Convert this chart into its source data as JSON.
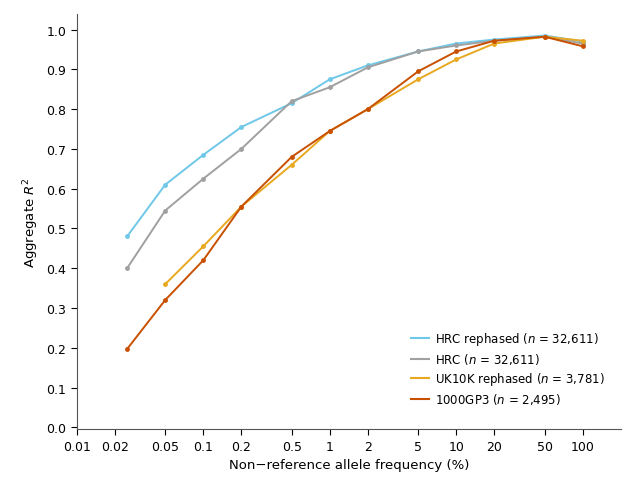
{
  "series": [
    {
      "label_text": "HRC rephased ($\\it{n}$ = 32,611)",
      "color": "#6FC8E8",
      "x": [
        0.025,
        0.05,
        0.1,
        0.2,
        0.5,
        1,
        2,
        5,
        10,
        20,
        50,
        100
      ],
      "y": [
        0.48,
        0.61,
        0.685,
        0.755,
        0.815,
        0.875,
        0.91,
        0.945,
        0.965,
        0.975,
        0.985,
        0.97
      ]
    },
    {
      "label_text": "HRC ($\\it{n}$ = 32,611)",
      "color": "#A0A0A0",
      "x": [
        0.025,
        0.05,
        0.1,
        0.2,
        0.5,
        1,
        2,
        5,
        10,
        20,
        50,
        100
      ],
      "y": [
        0.4,
        0.545,
        0.625,
        0.7,
        0.82,
        0.855,
        0.905,
        0.945,
        0.96,
        0.972,
        0.982,
        0.965
      ]
    },
    {
      "label_text": "UK10K rephased ($\\it{n}$ = 3,781)",
      "color": "#E8A820",
      "x": [
        0.05,
        0.1,
        0.2,
        0.5,
        1,
        2,
        5,
        10,
        20,
        50,
        100
      ],
      "y": [
        0.36,
        0.455,
        0.555,
        0.66,
        0.745,
        0.8,
        0.875,
        0.925,
        0.965,
        0.982,
        0.972
      ]
    },
    {
      "label_text": "1000GP3 ($\\it{n}$ = 2,495)",
      "color": "#C85000",
      "x": [
        0.025,
        0.05,
        0.1,
        0.2,
        0.5,
        1,
        2,
        5,
        10,
        20,
        50,
        100
      ],
      "y": [
        0.197,
        0.32,
        0.42,
        0.555,
        0.68,
        0.745,
        0.8,
        0.895,
        0.945,
        0.972,
        0.982,
        0.958
      ]
    }
  ],
  "xlabel": "Non−reference allele frequency (%)",
  "ylabel": "Aggregate $R^2$",
  "xlim_log": [
    0.01,
    200
  ],
  "ylim": [
    -0.005,
    1.04
  ],
  "yticks": [
    0.0,
    0.1,
    0.2,
    0.3,
    0.4,
    0.5,
    0.6,
    0.7,
    0.8,
    0.9,
    1.0
  ],
  "xticks": [
    0.01,
    0.02,
    0.05,
    0.1,
    0.2,
    0.5,
    1,
    2,
    5,
    10,
    20,
    50,
    100
  ],
  "xtick_labels": [
    "0.01",
    "0.02",
    "0.05",
    "0.1",
    "0.2",
    "0.5",
    "1",
    "2",
    "5",
    "10",
    "20",
    "50",
    "100"
  ],
  "background_color": "#ffffff",
  "marker_size": 3.5,
  "linewidth": 1.4
}
